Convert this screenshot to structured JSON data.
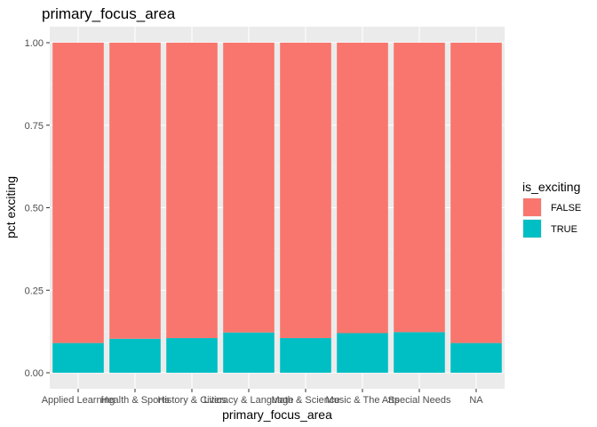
{
  "chart_data": {
    "type": "bar",
    "stacked": true,
    "title": "primary_focus_area",
    "xlabel": "primary_focus_area",
    "ylabel": "pct exciting",
    "ylim": [
      0,
      1
    ],
    "yticks": [
      "0.00",
      "0.25",
      "0.50",
      "0.75",
      "1.00"
    ],
    "grid": true,
    "categories": [
      "Applied Learning",
      "Health & Sports",
      "History & Civics",
      "Literacy & Language",
      "Math & Science",
      "Music & The Arts",
      "Special Needs",
      "NA"
    ],
    "series": [
      {
        "name": "FALSE",
        "color": "#F8766D",
        "values": [
          0.91,
          0.897,
          0.895,
          0.878,
          0.895,
          0.88,
          0.877,
          0.91
        ]
      },
      {
        "name": "TRUE",
        "color": "#00BFC4",
        "values": [
          0.09,
          0.103,
          0.105,
          0.122,
          0.105,
          0.12,
          0.123,
          0.09
        ]
      }
    ],
    "legend": {
      "title": "is_exciting",
      "position": "right",
      "items": [
        "FALSE",
        "TRUE"
      ]
    }
  }
}
